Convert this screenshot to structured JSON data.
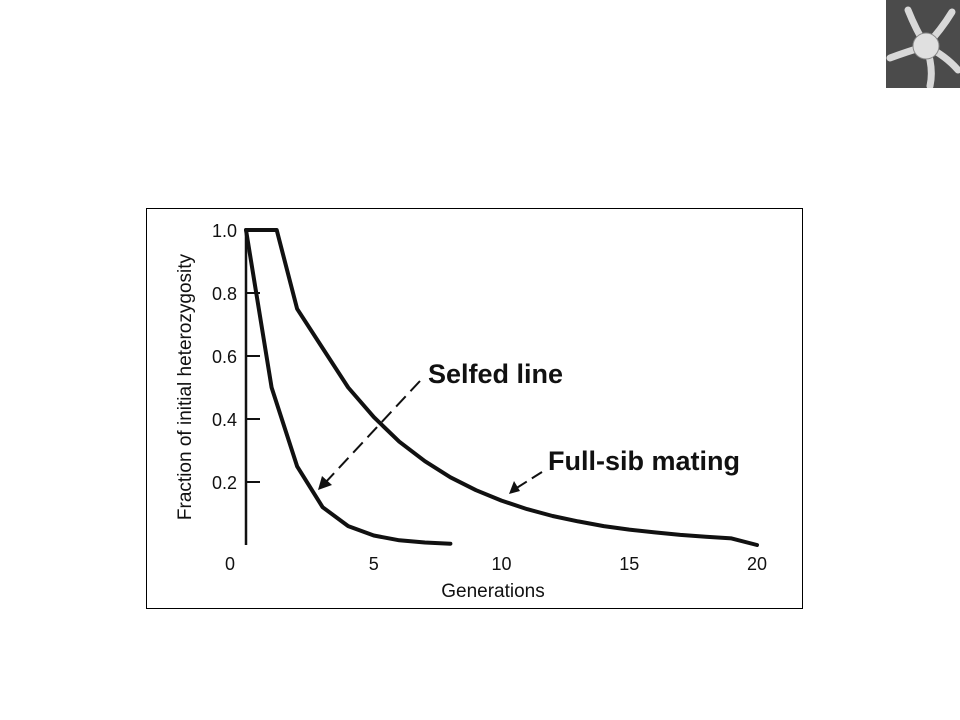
{
  "chart_data": {
    "type": "line",
    "xlabel": "Generations",
    "ylabel": "Fraction of initial heterozygosity",
    "xlim": [
      0,
      20
    ],
    "ylim": [
      0,
      1.0
    ],
    "x_ticks": [
      0,
      5,
      10,
      15,
      20
    ],
    "y_ticks": [
      0.2,
      0.4,
      0.6,
      0.8,
      1.0
    ],
    "x_tick_labels": [
      "0",
      "5",
      "10",
      "15",
      "20"
    ],
    "y_tick_labels": [
      "0.2",
      "0.4",
      "0.6",
      "0.8",
      "1.0"
    ],
    "grid": false,
    "series": [
      {
        "name": "Selfed line",
        "x": [
          0,
          1,
          2,
          3,
          4,
          5,
          6,
          7,
          8
        ],
        "y": [
          1.0,
          0.5,
          0.25,
          0.12,
          0.06,
          0.03,
          0.015,
          0.008,
          0.004
        ]
      },
      {
        "name": "Full-sib mating",
        "x": [
          0,
          1,
          2,
          3,
          4,
          5,
          6,
          7,
          8,
          9,
          10,
          11,
          12,
          13,
          14,
          15,
          16,
          17,
          18,
          19,
          20
        ],
        "y": [
          1.0,
          1.0,
          0.75,
          0.625,
          0.5,
          0.406,
          0.328,
          0.266,
          0.215,
          0.174,
          0.141,
          0.114,
          0.092,
          0.075,
          0.06,
          0.049,
          0.04,
          0.032,
          0.026,
          0.021,
          0.0
        ]
      }
    ],
    "annotations": [
      {
        "text": "Selfed line",
        "points_to_series": "Selfed line"
      },
      {
        "text": "Full-sib mating",
        "points_to_series": "Full-sib mating"
      }
    ]
  },
  "corner_image": {
    "subject": "brittle-star micrograph"
  }
}
